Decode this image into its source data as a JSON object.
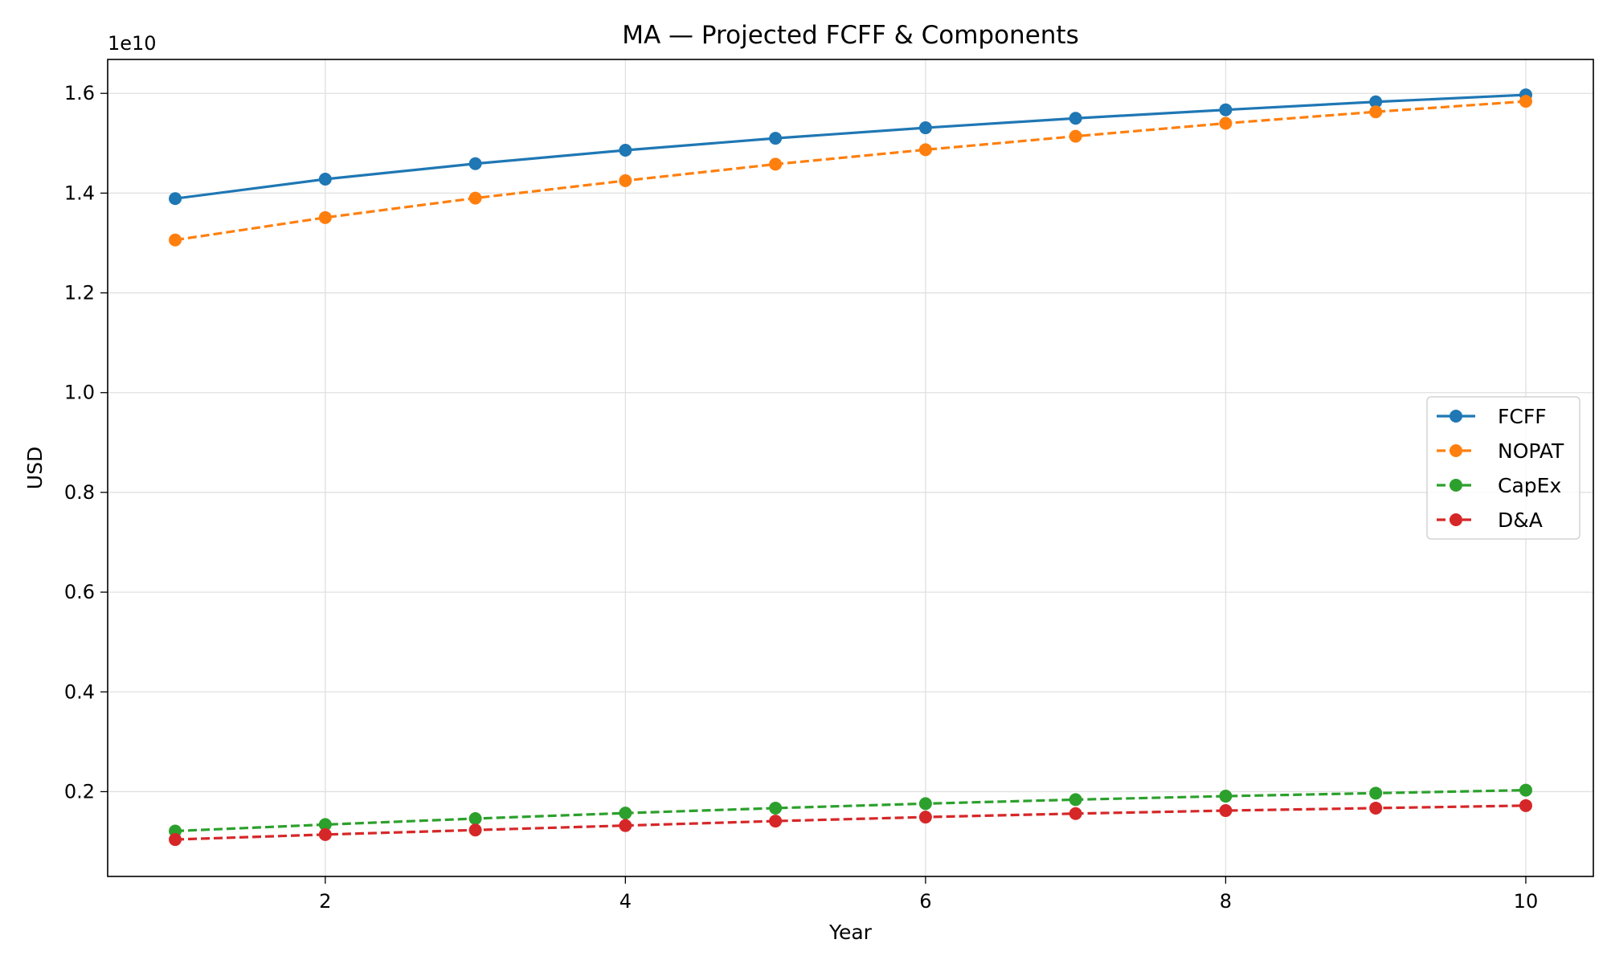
{
  "chart_data": {
    "type": "line",
    "title": "MA — Projected FCFF & Components",
    "xlabel": "Year",
    "ylabel": "USD",
    "y_offset_text": "1e10",
    "x": [
      1,
      2,
      3,
      4,
      5,
      6,
      7,
      8,
      9,
      10
    ],
    "xlim": [
      0.55,
      10.45
    ],
    "ylim": [
      300000000.0,
      16680000000.0
    ],
    "x_ticks": [
      2,
      4,
      6,
      8,
      10
    ],
    "x_tick_labels": [
      "2",
      "4",
      "6",
      "8",
      "10"
    ],
    "y_ticks": [
      2000000000.0,
      4000000000.0,
      6000000000.0,
      8000000000.0,
      10000000000.0,
      12000000000.0,
      14000000000.0,
      16000000000.0
    ],
    "y_tick_labels": [
      "0.2",
      "0.4",
      "0.6",
      "0.8",
      "1.0",
      "1.2",
      "1.4",
      "1.6"
    ],
    "grid": true,
    "legend_position": "center-right",
    "series": [
      {
        "name": "FCFF",
        "color": "#1f77b4",
        "line_style": "solid",
        "values": [
          13890000000.0,
          14280000000.0,
          14590000000.0,
          14860000000.0,
          15100000000.0,
          15310000000.0,
          15500000000.0,
          15670000000.0,
          15830000000.0,
          15970000000.0
        ]
      },
      {
        "name": "NOPAT",
        "color": "#ff7f0e",
        "line_style": "dashed",
        "values": [
          13060000000.0,
          13510000000.0,
          13900000000.0,
          14250000000.0,
          14580000000.0,
          14870000000.0,
          15140000000.0,
          15400000000.0,
          15630000000.0,
          15840000000.0
        ]
      },
      {
        "name": "CapEx",
        "color": "#2ca02c",
        "line_style": "dashed",
        "values": [
          1210000000.0,
          1340000000.0,
          1460000000.0,
          1570000000.0,
          1670000000.0,
          1760000000.0,
          1840000000.0,
          1910000000.0,
          1970000000.0,
          2030000000.0
        ]
      },
      {
        "name": "D&A",
        "color": "#d62728",
        "line_style": "dashed",
        "values": [
          1040000000.0,
          1140000000.0,
          1230000000.0,
          1320000000.0,
          1410000000.0,
          1490000000.0,
          1560000000.0,
          1620000000.0,
          1670000000.0,
          1720000000.0
        ]
      }
    ]
  }
}
